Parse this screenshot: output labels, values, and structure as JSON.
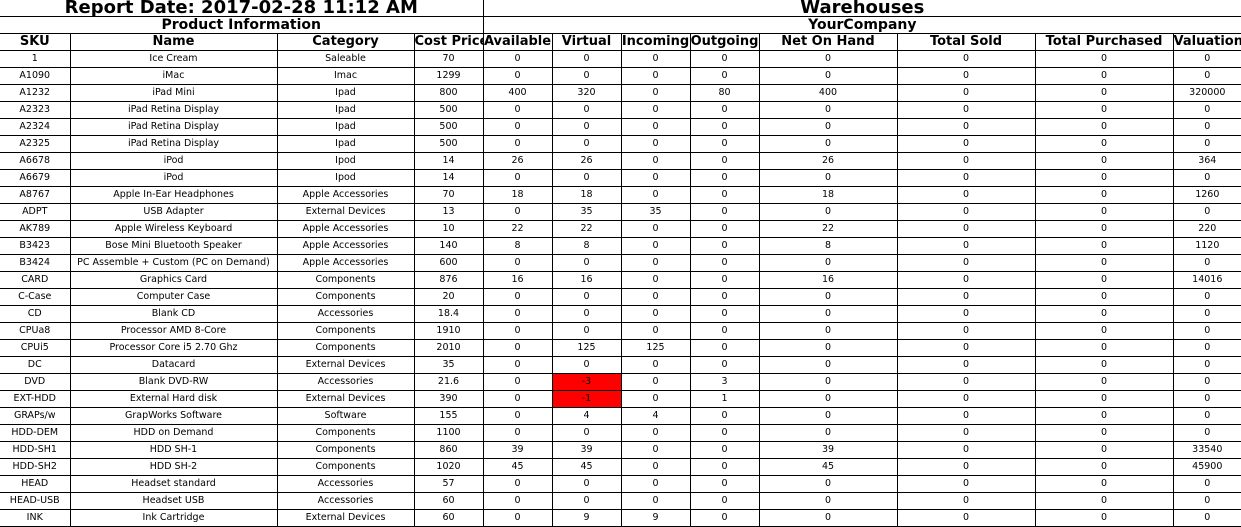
{
  "report_date": "Report Date: 2017-02-28 11:12 AM",
  "warehouses_title": "Warehouses",
  "product_info_label": "Product Information",
  "company": "YourCompany",
  "columns": [
    "SKU",
    "Name",
    "Category",
    "Cost Price",
    "Available",
    "Virtual",
    "Incoming",
    "Outgoing",
    "Net On Hand",
    "Total Sold",
    "Total Purchased",
    "Valuation"
  ],
  "rows": [
    [
      "1",
      "Ice Cream",
      "Saleable",
      "70",
      "0",
      "0",
      "0",
      "0",
      "0",
      "0",
      "0",
      "0"
    ],
    [
      "A1090",
      "iMac",
      "Imac",
      "1299",
      "0",
      "0",
      "0",
      "0",
      "0",
      "0",
      "0",
      "0"
    ],
    [
      "A1232",
      "iPad Mini",
      "Ipad",
      "800",
      "400",
      "320",
      "0",
      "80",
      "400",
      "0",
      "0",
      "320000"
    ],
    [
      "A2323",
      "iPad Retina Display",
      "Ipad",
      "500",
      "0",
      "0",
      "0",
      "0",
      "0",
      "0",
      "0",
      "0"
    ],
    [
      "A2324",
      "iPad Retina Display",
      "Ipad",
      "500",
      "0",
      "0",
      "0",
      "0",
      "0",
      "0",
      "0",
      "0"
    ],
    [
      "A2325",
      "iPad Retina Display",
      "Ipad",
      "500",
      "0",
      "0",
      "0",
      "0",
      "0",
      "0",
      "0",
      "0"
    ],
    [
      "A6678",
      "iPod",
      "Ipod",
      "14",
      "26",
      "26",
      "0",
      "0",
      "26",
      "0",
      "0",
      "364"
    ],
    [
      "A6679",
      "iPod",
      "Ipod",
      "14",
      "0",
      "0",
      "0",
      "0",
      "0",
      "0",
      "0",
      "0"
    ],
    [
      "A8767",
      "Apple In-Ear Headphones",
      "Apple Accessories",
      "70",
      "18",
      "18",
      "0",
      "0",
      "18",
      "0",
      "0",
      "1260"
    ],
    [
      "ADPT",
      "USB Adapter",
      "External Devices",
      "13",
      "0",
      "35",
      "35",
      "0",
      "0",
      "0",
      "0",
      "0"
    ],
    [
      "AK789",
      "Apple Wireless Keyboard",
      "Apple Accessories",
      "10",
      "22",
      "22",
      "0",
      "0",
      "22",
      "0",
      "0",
      "220"
    ],
    [
      "B3423",
      "Bose Mini Bluetooth Speaker",
      "Apple Accessories",
      "140",
      "8",
      "8",
      "0",
      "0",
      "8",
      "0",
      "0",
      "1120"
    ],
    [
      "B3424",
      "PC Assemble + Custom (PC on Demand)",
      "Apple Accessories",
      "600",
      "0",
      "0",
      "0",
      "0",
      "0",
      "0",
      "0",
      "0"
    ],
    [
      "CARD",
      "Graphics Card",
      "Components",
      "876",
      "16",
      "16",
      "0",
      "0",
      "16",
      "0",
      "0",
      "14016"
    ],
    [
      "C-Case",
      "Computer Case",
      "Components",
      "20",
      "0",
      "0",
      "0",
      "0",
      "0",
      "0",
      "0",
      "0"
    ],
    [
      "CD",
      "Blank CD",
      "Accessories",
      "18.4",
      "0",
      "0",
      "0",
      "0",
      "0",
      "0",
      "0",
      "0"
    ],
    [
      "CPUa8",
      "Processor AMD 8-Core",
      "Components",
      "1910",
      "0",
      "0",
      "0",
      "0",
      "0",
      "0",
      "0",
      "0"
    ],
    [
      "CPUi5",
      "Processor Core i5 2.70 Ghz",
      "Components",
      "2010",
      "0",
      "125",
      "125",
      "0",
      "0",
      "0",
      "0",
      "0"
    ],
    [
      "DC",
      "Datacard",
      "External Devices",
      "35",
      "0",
      "0",
      "0",
      "0",
      "0",
      "0",
      "0",
      "0"
    ],
    [
      "DVD",
      "Blank DVD-RW",
      "Accessories",
      "21.6",
      "0",
      "-3",
      "0",
      "3",
      "0",
      "0",
      "0",
      "0"
    ],
    [
      "EXT-HDD",
      "External Hard disk",
      "External Devices",
      "390",
      "0",
      "-1",
      "0",
      "1",
      "0",
      "0",
      "0",
      "0"
    ],
    [
      "GRAPs/w",
      "GrapWorks Software",
      "Software",
      "155",
      "0",
      "4",
      "4",
      "0",
      "0",
      "0",
      "0",
      "0"
    ],
    [
      "HDD-DEM",
      "HDD on Demand",
      "Components",
      "1100",
      "0",
      "0",
      "0",
      "0",
      "0",
      "0",
      "0",
      "0"
    ],
    [
      "HDD-SH1",
      "HDD SH-1",
      "Components",
      "860",
      "39",
      "39",
      "0",
      "0",
      "39",
      "0",
      "0",
      "33540"
    ],
    [
      "HDD-SH2",
      "HDD SH-2",
      "Components",
      "1020",
      "45",
      "45",
      "0",
      "0",
      "45",
      "0",
      "0",
      "45900"
    ],
    [
      "HEAD",
      "Headset standard",
      "Accessories",
      "57",
      "0",
      "0",
      "0",
      "0",
      "0",
      "0",
      "0",
      "0"
    ],
    [
      "HEAD-USB",
      "Headset USB",
      "Accessories",
      "60",
      "0",
      "0",
      "0",
      "0",
      "0",
      "0",
      "0",
      "0"
    ],
    [
      "INK",
      "Ink Cartridge",
      "External Devices",
      "60",
      "0",
      "9",
      "9",
      "0",
      "0",
      "0",
      "0",
      "0"
    ]
  ],
  "highlight_color": "#ff0000"
}
